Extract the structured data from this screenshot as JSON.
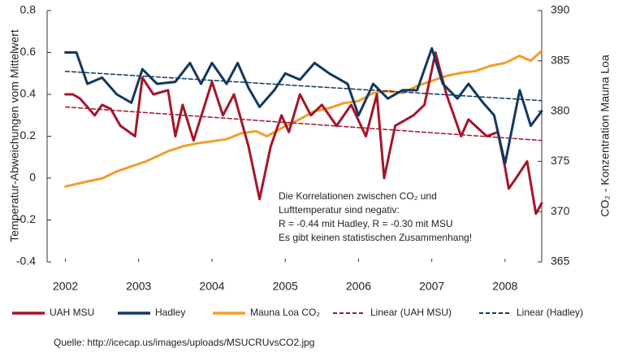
{
  "chart_data": {
    "type": "line",
    "ylabel": "Temperatur-Abweichungen vom Mittelwert",
    "y2label": "CO₂ - Konzentration Mauna Loa",
    "xlim": [
      2001.75,
      2008.5
    ],
    "xticks": [
      2002,
      2003,
      2004,
      2005,
      2006,
      2007,
      2008
    ],
    "ylim": [
      -0.4,
      0.8
    ],
    "yticks": [
      -0.4,
      -0.2,
      0,
      0.2,
      0.4,
      0.6,
      0.8
    ],
    "y2lim": [
      365,
      390
    ],
    "y2ticks": [
      365,
      370,
      375,
      380,
      385,
      390
    ],
    "series": [
      {
        "name": "UAH MSU",
        "color": "#a3162b",
        "dashed": false,
        "x": [
          2002,
          2002.1,
          2002.2,
          2002.4,
          2002.5,
          2002.62,
          2002.75,
          2002.95,
          2003.05,
          2003.2,
          2003.4,
          2003.5,
          2003.6,
          2003.75,
          2004.0,
          2004.15,
          2004.3,
          2004.5,
          2004.65,
          2004.8,
          2004.95,
          2005.05,
          2005.2,
          2005.35,
          2005.5,
          2005.7,
          2005.9,
          2006.1,
          2006.25,
          2006.35,
          2006.5,
          2006.75,
          2006.9,
          2007.05,
          2007.2,
          2007.4,
          2007.5,
          2007.75,
          2007.9,
          2008.0,
          2008.05,
          2008.15,
          2008.3,
          2008.42,
          2008.5
        ],
        "values": [
          0.4,
          0.4,
          0.38,
          0.3,
          0.35,
          0.33,
          0.25,
          0.2,
          0.48,
          0.4,
          0.42,
          0.2,
          0.35,
          0.18,
          0.46,
          0.3,
          0.4,
          0.15,
          -0.1,
          0.15,
          0.3,
          0.22,
          0.4,
          0.3,
          0.35,
          0.25,
          0.35,
          0.2,
          0.4,
          0.0,
          0.25,
          0.3,
          0.35,
          0.6,
          0.4,
          0.2,
          0.28,
          0.2,
          0.22,
          0.05,
          -0.05,
          0.0,
          0.08,
          -0.17,
          -0.12
        ]
      },
      {
        "name": "Hadley",
        "color": "#12385f",
        "dashed": false,
        "x": [
          2002,
          2002.15,
          2002.3,
          2002.5,
          2002.7,
          2002.9,
          2003.05,
          2003.25,
          2003.5,
          2003.7,
          2003.85,
          2004.0,
          2004.2,
          2004.35,
          2004.5,
          2004.65,
          2004.85,
          2005.0,
          2005.2,
          2005.4,
          2005.6,
          2005.85,
          2006.0,
          2006.2,
          2006.4,
          2006.6,
          2006.8,
          2007.0,
          2007.15,
          2007.35,
          2007.5,
          2007.7,
          2007.85,
          2008.0,
          2008.2,
          2008.35,
          2008.5
        ],
        "values": [
          0.6,
          0.6,
          0.45,
          0.48,
          0.4,
          0.36,
          0.52,
          0.45,
          0.46,
          0.55,
          0.45,
          0.55,
          0.45,
          0.55,
          0.43,
          0.34,
          0.42,
          0.5,
          0.47,
          0.55,
          0.5,
          0.45,
          0.3,
          0.45,
          0.38,
          0.42,
          0.42,
          0.62,
          0.45,
          0.38,
          0.45,
          0.36,
          0.3,
          0.07,
          0.42,
          0.25,
          0.32
        ]
      },
      {
        "name": "Mauna Loa CO₂",
        "color": "#f39c2b",
        "dashed": false,
        "axis": "y2",
        "x": [
          2002,
          2002.3,
          2002.5,
          2002.7,
          2002.9,
          2003.1,
          2003.4,
          2003.6,
          2003.8,
          2004.0,
          2004.2,
          2004.4,
          2004.6,
          2004.75,
          2005.0,
          2005.2,
          2005.4,
          2005.6,
          2005.8,
          2006.0,
          2006.2,
          2006.4,
          2006.6,
          2006.8,
          2007.0,
          2007.2,
          2007.4,
          2007.6,
          2007.8,
          2008.0,
          2008.2,
          2008.35,
          2008.5
        ],
        "values": [
          372.5,
          373.0,
          373.3,
          374.0,
          374.5,
          375.0,
          376.0,
          376.5,
          376.8,
          377.0,
          377.2,
          377.8,
          378.0,
          377.5,
          378.5,
          379.2,
          380.0,
          380.3,
          380.8,
          381.0,
          381.8,
          382.0,
          381.8,
          382.5,
          383.0,
          383.5,
          383.8,
          384.0,
          384.5,
          384.8,
          385.5,
          385.0,
          386.0
        ]
      },
      {
        "name": "Linear (UAH MSU)",
        "color": "#a3162b",
        "dashed": true,
        "x": [
          2002,
          2008.5
        ],
        "values": [
          0.34,
          0.18
        ]
      },
      {
        "name": "Linear (Hadley)",
        "color": "#12385f",
        "dashed": true,
        "x": [
          2002,
          2008.5
        ],
        "values": [
          0.51,
          0.37
        ]
      }
    ],
    "annotation": [
      "Die Korrelationen zwischen CO₂ und",
      "Lufttemperatur sind negativ:",
      "R = -0.44 mit Hadley, R = -0.30 mit MSU",
      "Es gibt keinen statistischen Zusammenhang!"
    ],
    "source": "Quelle: http://icecap.us/images/uploads/MSUCRUvsCO2.jpg"
  }
}
